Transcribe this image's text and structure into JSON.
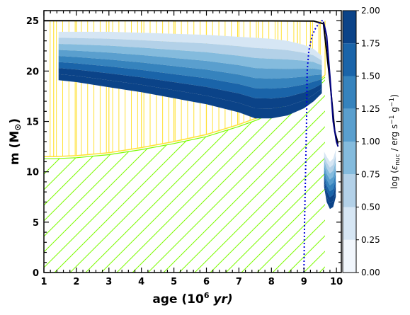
{
  "chart_data": {
    "type": "area",
    "title": "",
    "xlabel": {
      "main": "age (10",
      "sup": "6",
      "unit": " yr)"
    },
    "ylabel": {
      "main": "m (M",
      "sub": "⊙",
      "close": ")"
    },
    "xlim": [
      1.0,
      10.15
    ],
    "ylim": [
      0,
      26
    ],
    "x_ticks": [
      1,
      2,
      3,
      4,
      5,
      6,
      7,
      8,
      9,
      10
    ],
    "y_ticks": [
      0,
      5,
      10,
      15,
      20,
      25
    ],
    "colorbar": {
      "label": "log (ε_nuc / erg s⁻¹ g⁻¹)",
      "label_parts": {
        "pre": "log (",
        "eps": "ε",
        "sub": "nuc",
        "mid": " / erg s",
        "exp1": "−1",
        "g": " g",
        "exp2": "−1",
        "close": ")"
      },
      "range": [
        0,
        2.0
      ],
      "ticks": [
        "0.00",
        "0.25",
        "0.50",
        "0.75",
        "1.00",
        "1.25",
        "1.50",
        "1.75",
        "2.00"
      ],
      "colors": [
        "#f1f6fc",
        "#d6e6f4",
        "#b3d1e8",
        "#84bbdd",
        "#5a9fce",
        "#3683bd",
        "#1a64a9",
        "#0b4388"
      ]
    },
    "series": [
      {
        "label": "star mass",
        "color": "#000000",
        "x": [
          1.0,
          2.0,
          4.0,
          6.0,
          8.0,
          9.3,
          9.6,
          9.8,
          9.95,
          10.05
        ],
        "y": [
          25.0,
          25.0,
          25.0,
          24.99,
          24.98,
          24.96,
          24.7,
          19.0,
          14.0,
          12.8
        ]
      },
      {
        "label": "convective core (hatched)",
        "color": "#7cfc00",
        "x": [
          1.0,
          1.3,
          2.0,
          3.0,
          4.0,
          5.0,
          6.0,
          7.0,
          7.6,
          8.2,
          8.8,
          9.2,
          9.5,
          9.65
        ],
        "y": [
          11.3,
          11.3,
          11.4,
          11.7,
          12.2,
          12.8,
          13.5,
          14.5,
          15.2,
          16.2,
          17.3,
          18.2,
          19.0,
          19.4
        ]
      },
      {
        "label": "semiconvection (yellow)",
        "color": "#ffe135",
        "x": [
          1.0,
          1.3,
          2.0,
          3.0,
          4.0,
          5.0,
          6.0,
          7.0,
          7.6,
          8.2,
          8.8,
          9.2,
          9.5,
          9.65
        ],
        "y_bottom": [
          11.5,
          11.5,
          11.6,
          11.9,
          12.4,
          13.0,
          13.7,
          14.7,
          15.4,
          16.4,
          17.5,
          18.4,
          19.2,
          19.6
        ],
        "y_top": [
          25.0,
          25.0,
          25.0,
          25.0,
          25.0,
          25.0,
          25.0,
          25.0,
          25.0,
          25.0,
          25.0,
          25.0,
          25.0,
          25.0
        ]
      },
      {
        "label": "H-burning shell region",
        "x": [
          1.45,
          2.0,
          3.0,
          4.0,
          5.0,
          6.0,
          7.0,
          7.5,
          8.0,
          8.5,
          9.0,
          9.3,
          9.55
        ],
        "y_bottom": [
          19.1,
          18.9,
          18.4,
          17.9,
          17.3,
          16.7,
          15.9,
          15.3,
          15.3,
          15.6,
          16.3,
          17.0,
          17.8
        ],
        "y_top": [
          23.9,
          23.9,
          23.9,
          23.8,
          23.7,
          23.6,
          23.4,
          23.3,
          23.2,
          23.0,
          22.6,
          22.2,
          21.5
        ]
      },
      {
        "label": "late burning region",
        "x": [
          9.62,
          9.7,
          9.8,
          9.9,
          9.98
        ],
        "y_bottom": [
          8.5,
          7.0,
          6.3,
          6.5,
          7.5
        ],
        "y_top": [
          12.0,
          11.5,
          11.0,
          11.3,
          12.2
        ]
      },
      {
        "label": "blue dotted",
        "color": "#0000dd",
        "x": [
          9.0,
          9.02,
          9.05,
          9.08,
          9.1,
          9.15,
          9.25,
          9.35,
          9.45,
          9.55,
          9.6
        ],
        "y": [
          0,
          5.0,
          10.0,
          15.0,
          20.0,
          22.0,
          23.5,
          24.2,
          24.7,
          25.0,
          25.0
        ]
      },
      {
        "label": "navy solid",
        "color": "#000080",
        "x": [
          9.6,
          9.7,
          9.8,
          9.9,
          10.0,
          10.05
        ],
        "y": [
          24.9,
          23.5,
          19.5,
          15.0,
          13.0,
          12.5
        ]
      }
    ]
  }
}
